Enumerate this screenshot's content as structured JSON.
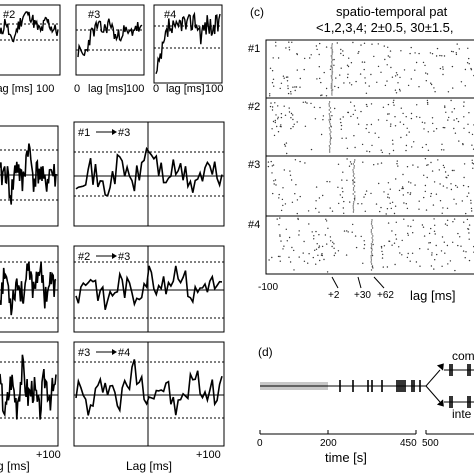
{
  "panel_labels": {
    "c": "(c)",
    "d": "(d)"
  },
  "left_panels": {
    "row1": [
      {
        "tag": "#2",
        "tick_right": "100",
        "xlabel": "lag [ms]"
      },
      {
        "tag": "#3",
        "tick_left": "0",
        "tick_right": "100",
        "xlabel": "lag [ms]"
      },
      {
        "tag": "#4",
        "tick_left": "0",
        "tick_right": "100",
        "xlabel": "lag [ms]"
      }
    ],
    "row2": {
      "tag_from": "#1",
      "tag_to": "#3"
    },
    "row3": {
      "tag_from": "#2",
      "tag_to": "#3"
    },
    "row4": {
      "tag_from": "#3",
      "tag_to": "#4"
    },
    "bottom_tick": "+100",
    "bottom_xlabel": "Lag [ms]",
    "bottom_xlabel_left": "g [ms]"
  },
  "panel_c": {
    "title_line1": "spatio-temporal pat",
    "title_line2": "<1,2,3,4; 2±0.5, 30±1.5,",
    "neurons": [
      "#1",
      "#2",
      "#3",
      "#4"
    ],
    "x_tick": "-100",
    "xlabel": "lag [ms]",
    "markers": [
      "+2",
      "+30",
      "+62"
    ]
  },
  "panel_d": {
    "label_top": "com",
    "label_bottom": "inte",
    "ticks": [
      "0",
      "200",
      "450",
      "500"
    ],
    "xlabel": "time [s]"
  },
  "chart_data": [
    {
      "type": "line",
      "panel": "cross-correlogram #2 (row 1)",
      "x_range": [
        -100,
        100
      ],
      "x": [
        -100,
        -80,
        -60,
        -40,
        -20,
        0,
        20,
        40,
        60,
        80,
        100
      ],
      "values": [
        0.4,
        0.8,
        0.2,
        0.6,
        0.9,
        1.0,
        0.7,
        0.5,
        0.8,
        0.6,
        0.5
      ]
    },
    {
      "type": "line",
      "panel": "cross-correlogram #3 (row 1)",
      "x_range": [
        0,
        100
      ],
      "x": [
        0,
        10,
        20,
        30,
        40,
        50,
        60,
        70,
        80,
        90,
        100
      ],
      "values": [
        0.2,
        0.1,
        0.6,
        0.8,
        0.7,
        0.9,
        0.5,
        0.7,
        0.6,
        0.8,
        0.7
      ]
    },
    {
      "type": "line",
      "panel": "cross-correlogram #4 (row 1)",
      "x_range": [
        0,
        100
      ],
      "x": [
        0,
        10,
        20,
        30,
        40,
        50,
        60,
        70,
        80,
        90,
        100
      ],
      "values": [
        0.0,
        0.4,
        0.8,
        0.7,
        0.9,
        0.8,
        0.95,
        0.7,
        0.85,
        0.75,
        0.9
      ]
    },
    {
      "type": "line",
      "panel": "#1 → #3",
      "x_range": [
        -100,
        100
      ],
      "x": [
        -100,
        -80,
        -60,
        -40,
        -20,
        0,
        20,
        40,
        60,
        80,
        100
      ],
      "values": [
        0.5,
        0.6,
        0.3,
        0.7,
        0.4,
        0.9,
        0.5,
        0.6,
        0.4,
        0.6,
        0.5
      ]
    },
    {
      "type": "line",
      "panel": "#2 → #3",
      "x_range": [
        -100,
        100
      ],
      "x": [
        -100,
        -80,
        -60,
        -40,
        -20,
        0,
        20,
        40,
        60,
        80,
        100
      ],
      "values": [
        0.4,
        0.7,
        0.3,
        0.6,
        0.4,
        0.7,
        0.5,
        0.8,
        0.4,
        0.6,
        0.5
      ]
    },
    {
      "type": "line",
      "panel": "#3 → #4",
      "x_range": [
        -100,
        100
      ],
      "x": [
        -100,
        -80,
        -60,
        -40,
        -20,
        0,
        20,
        40,
        60,
        80,
        100
      ],
      "values": [
        0.6,
        0.3,
        0.7,
        0.4,
        0.8,
        0.5,
        0.6,
        0.3,
        0.7,
        0.5,
        0.6
      ]
    }
  ]
}
